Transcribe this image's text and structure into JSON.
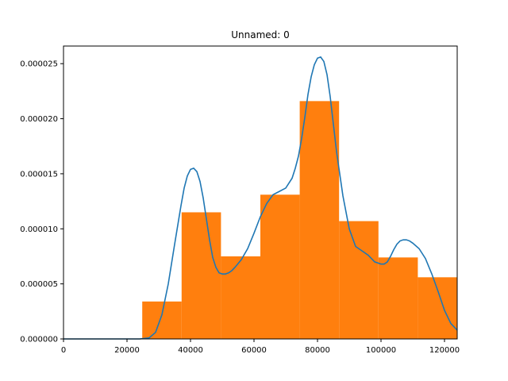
{
  "chart_data": {
    "type": "bar",
    "title": "Unnamed: 0",
    "xlabel": "",
    "ylabel": "",
    "xlim": [
      0,
      124000
    ],
    "ylim": [
      0,
      2.66e-05
    ],
    "grid": false,
    "legend": "none",
    "x_ticks": [
      {
        "value": 0,
        "label": "0"
      },
      {
        "value": 20000,
        "label": "20000"
      },
      {
        "value": 40000,
        "label": "40000"
      },
      {
        "value": 60000,
        "label": "60000"
      },
      {
        "value": 80000,
        "label": "80000"
      },
      {
        "value": 100000,
        "label": "100000"
      },
      {
        "value": 120000,
        "label": "120000"
      }
    ],
    "y_ticks": [
      {
        "value": 0,
        "label": "0.000000"
      },
      {
        "value": 5e-06,
        "label": "0.000005"
      },
      {
        "value": 1e-05,
        "label": "0.000010"
      },
      {
        "value": 1.5e-05,
        "label": "0.000015"
      },
      {
        "value": 2e-05,
        "label": "0.000020"
      },
      {
        "value": 2.5e-05,
        "label": "0.000025"
      }
    ],
    "histogram": {
      "color": "#ff7f0e",
      "bin_edges": [
        24800,
        37200,
        49600,
        62000,
        74400,
        86800,
        99200,
        111600,
        124000
      ],
      "density": [
        3.4e-06,
        1.15e-05,
        7.5e-06,
        1.31e-05,
        2.16e-05,
        1.07e-05,
        7.4e-06,
        5.6e-06
      ]
    },
    "kde": {
      "color": "#1f77b4",
      "x": [
        0,
        24000,
        27000,
        29000,
        31000,
        33000,
        35000,
        37000,
        38000,
        39000,
        40000,
        41000,
        42000,
        43000,
        44000,
        45000,
        46000,
        47000,
        48000,
        49000,
        50000,
        51000,
        52000,
        53000,
        54000,
        56000,
        58000,
        60000,
        62000,
        64000,
        66000,
        68000,
        70000,
        72000,
        73000,
        74000,
        75000,
        76000,
        77000,
        78000,
        79000,
        80000,
        81000,
        82000,
        83000,
        84000,
        85000,
        86000,
        88000,
        90000,
        92000,
        94000,
        96000,
        98000,
        100000,
        101000,
        102000,
        103000,
        104000,
        105000,
        106000,
        107000,
        108000,
        109000,
        110000,
        112000,
        114000,
        116000,
        118000,
        120000,
        122000,
        124000
      ],
      "y": [
        0,
        0,
        1e-07,
        6e-07,
        2.2e-06,
        5e-06,
        8.6e-06,
        1.21e-05,
        1.37e-05,
        1.48e-05,
        1.54e-05,
        1.55e-05,
        1.52e-05,
        1.43e-05,
        1.28e-05,
        1.09e-05,
        9e-06,
        7.4e-06,
        6.5e-06,
        6e-06,
        5.9e-06,
        5.9e-06,
        6e-06,
        6.2e-06,
        6.5e-06,
        7.2e-06,
        8.2e-06,
        9.6e-06,
        1.11e-05,
        1.23e-05,
        1.31e-05,
        1.34e-05,
        1.37e-05,
        1.46e-05,
        1.55e-05,
        1.66e-05,
        1.82e-05,
        2.01e-05,
        2.22e-05,
        2.38e-05,
        2.49e-05,
        2.55e-05,
        2.56e-05,
        2.52e-05,
        2.4e-05,
        2.2e-05,
        1.95e-05,
        1.7e-05,
        1.3e-05,
        1e-05,
        8.4e-06,
        8e-06,
        7.6e-06,
        7e-06,
        6.8e-06,
        6.8e-06,
        7e-06,
        7.5e-06,
        8.1e-06,
        8.6e-06,
        8.9e-06,
        9e-06,
        9e-06,
        8.9e-06,
        8.7e-06,
        8.2e-06,
        7.3e-06,
        5.9e-06,
        4.3e-06,
        2.6e-06,
        1.4e-06,
        8e-07
      ]
    }
  }
}
